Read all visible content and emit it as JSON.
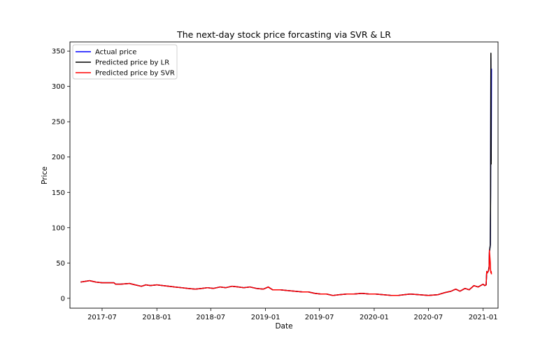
{
  "chart_data": {
    "type": "line",
    "title": "The next-day stock price forcasting via SVR & LR",
    "xlabel": "Date",
    "ylabel": "Price",
    "x_is_date": true,
    "xlim": [
      "2017-03-15",
      "2021-02-20"
    ],
    "ylim": [
      -14,
      363
    ],
    "x_ticks": [
      {
        "date": "2017-07-01",
        "label": "2017-07"
      },
      {
        "date": "2018-01-01",
        "label": "2018-01"
      },
      {
        "date": "2018-07-01",
        "label": "2018-07"
      },
      {
        "date": "2019-01-01",
        "label": "2019-01"
      },
      {
        "date": "2019-07-01",
        "label": "2019-07"
      },
      {
        "date": "2020-01-01",
        "label": "2020-01"
      },
      {
        "date": "2020-07-01",
        "label": "2020-07"
      },
      {
        "date": "2021-01-01",
        "label": "2021-01"
      }
    ],
    "y_ticks": [
      0,
      50,
      100,
      150,
      200,
      250,
      300,
      350
    ],
    "grid": false,
    "legend_position": "top-left",
    "series": [
      {
        "name": "Actual price",
        "color": "#0000ff",
        "x": [
          "2017-04-20",
          "2017-05-05",
          "2017-05-20",
          "2017-06-10",
          "2017-07-01",
          "2017-07-20",
          "2017-08-10",
          "2017-08-15",
          "2017-09-01",
          "2017-10-01",
          "2017-10-20",
          "2017-11-10",
          "2017-11-25",
          "2017-12-10",
          "2018-01-01",
          "2018-01-20",
          "2018-02-10",
          "2018-03-01",
          "2018-03-25",
          "2018-04-15",
          "2018-05-10",
          "2018-06-01",
          "2018-06-20",
          "2018-07-10",
          "2018-08-01",
          "2018-08-20",
          "2018-09-10",
          "2018-10-01",
          "2018-10-20",
          "2018-11-10",
          "2018-12-01",
          "2018-12-25",
          "2019-01-10",
          "2019-01-25",
          "2019-02-20",
          "2019-03-15",
          "2019-04-10",
          "2019-05-05",
          "2019-05-25",
          "2019-06-15",
          "2019-07-05",
          "2019-07-25",
          "2019-08-15",
          "2019-09-05",
          "2019-10-01",
          "2019-10-25",
          "2019-11-20",
          "2019-12-15",
          "2020-01-05",
          "2020-02-01",
          "2020-03-01",
          "2020-03-20",
          "2020-04-10",
          "2020-05-01",
          "2020-06-01",
          "2020-07-01",
          "2020-08-01",
          "2020-08-25",
          "2020-09-15",
          "2020-10-01",
          "2020-10-15",
          "2020-11-01",
          "2020-11-15",
          "2020-12-01",
          "2020-12-15",
          "2021-01-01",
          "2021-01-06",
          "2021-01-11",
          "2021-01-13",
          "2021-01-15",
          "2021-01-19",
          "2021-01-21",
          "2021-01-22",
          "2021-01-25",
          "2021-01-26",
          "2021-01-27",
          "2021-01-28",
          "2021-01-29"
        ],
        "y": [
          23,
          24,
          25,
          23,
          22,
          22,
          22,
          20,
          20,
          21,
          19,
          17,
          19,
          18,
          19,
          18,
          17,
          16,
          15,
          14,
          13,
          14,
          15,
          14,
          16,
          15,
          17,
          16,
          15,
          16,
          14,
          13,
          16,
          12,
          12,
          11,
          10,
          9,
          9,
          7,
          6,
          6,
          4,
          5,
          6,
          6,
          7,
          6,
          6,
          5,
          4,
          4,
          5,
          6,
          5,
          4,
          5,
          8,
          10,
          13,
          10,
          14,
          12,
          18,
          16,
          20,
          18,
          19,
          38,
          36,
          39,
          45,
          66,
          75,
          150,
          340,
          195,
          325
        ]
      },
      {
        "name": "Predicted price by LR",
        "color": "#000000",
        "x": [
          "2017-04-20",
          "2017-05-05",
          "2017-05-20",
          "2017-06-10",
          "2017-07-01",
          "2017-07-20",
          "2017-08-10",
          "2017-08-15",
          "2017-09-01",
          "2017-10-01",
          "2017-10-20",
          "2017-11-10",
          "2017-11-25",
          "2017-12-10",
          "2018-01-01",
          "2018-01-20",
          "2018-02-10",
          "2018-03-01",
          "2018-03-25",
          "2018-04-15",
          "2018-05-10",
          "2018-06-01",
          "2018-06-20",
          "2018-07-10",
          "2018-08-01",
          "2018-08-20",
          "2018-09-10",
          "2018-10-01",
          "2018-10-20",
          "2018-11-10",
          "2018-12-01",
          "2018-12-25",
          "2019-01-10",
          "2019-01-25",
          "2019-02-20",
          "2019-03-15",
          "2019-04-10",
          "2019-05-05",
          "2019-05-25",
          "2019-06-15",
          "2019-07-05",
          "2019-07-25",
          "2019-08-15",
          "2019-09-05",
          "2019-10-01",
          "2019-10-25",
          "2019-11-20",
          "2019-12-15",
          "2020-01-05",
          "2020-02-01",
          "2020-03-01",
          "2020-03-20",
          "2020-04-10",
          "2020-05-01",
          "2020-06-01",
          "2020-07-01",
          "2020-08-01",
          "2020-08-25",
          "2020-09-15",
          "2020-10-01",
          "2020-10-15",
          "2020-11-01",
          "2020-11-15",
          "2020-12-01",
          "2020-12-15",
          "2021-01-01",
          "2021-01-06",
          "2021-01-11",
          "2021-01-13",
          "2021-01-15",
          "2021-01-19",
          "2021-01-21",
          "2021-01-22",
          "2021-01-25",
          "2021-01-26",
          "2021-01-27",
          "2021-01-28",
          "2021-01-29"
        ],
        "y": [
          23,
          24,
          25,
          23,
          22,
          22,
          22,
          20,
          20,
          21,
          19,
          17,
          19,
          18,
          19,
          18,
          17,
          16,
          15,
          14,
          13,
          14,
          15,
          14,
          16,
          15,
          17,
          16,
          15,
          16,
          14,
          13,
          16,
          12,
          12,
          11,
          10,
          9,
          9,
          7,
          6,
          6,
          4,
          5,
          6,
          6,
          7,
          6,
          6,
          5,
          4,
          4,
          5,
          6,
          5,
          4,
          5,
          8,
          10,
          13,
          10,
          14,
          12,
          18,
          16,
          20,
          18,
          19,
          38,
          36,
          39,
          45,
          65,
          76,
          145,
          347,
          190,
          190
        ]
      },
      {
        "name": "Predicted price by SVR",
        "color": "#ff0000",
        "x": [
          "2017-04-20",
          "2017-05-05",
          "2017-05-20",
          "2017-06-10",
          "2017-07-01",
          "2017-07-20",
          "2017-08-10",
          "2017-08-15",
          "2017-09-01",
          "2017-10-01",
          "2017-10-20",
          "2017-11-10",
          "2017-11-25",
          "2017-12-10",
          "2018-01-01",
          "2018-01-20",
          "2018-02-10",
          "2018-03-01",
          "2018-03-25",
          "2018-04-15",
          "2018-05-10",
          "2018-06-01",
          "2018-06-20",
          "2018-07-10",
          "2018-08-01",
          "2018-08-20",
          "2018-09-10",
          "2018-10-01",
          "2018-10-20",
          "2018-11-10",
          "2018-12-01",
          "2018-12-25",
          "2019-01-10",
          "2019-01-25",
          "2019-02-20",
          "2019-03-15",
          "2019-04-10",
          "2019-05-05",
          "2019-05-25",
          "2019-06-15",
          "2019-07-05",
          "2019-07-25",
          "2019-08-15",
          "2019-09-05",
          "2019-10-01",
          "2019-10-25",
          "2019-11-20",
          "2019-12-15",
          "2020-01-05",
          "2020-02-01",
          "2020-03-01",
          "2020-03-20",
          "2020-04-10",
          "2020-05-01",
          "2020-06-01",
          "2020-07-01",
          "2020-08-01",
          "2020-08-25",
          "2020-09-15",
          "2020-10-01",
          "2020-10-15",
          "2020-11-01",
          "2020-11-15",
          "2020-12-01",
          "2020-12-15",
          "2021-01-01",
          "2021-01-06",
          "2021-01-11",
          "2021-01-13",
          "2021-01-15",
          "2021-01-19",
          "2021-01-21",
          "2021-01-22",
          "2021-01-25",
          "2021-01-26",
          "2021-01-27",
          "2021-01-28",
          "2021-01-29"
        ],
        "y": [
          23,
          24,
          25,
          23,
          22,
          22,
          22,
          20,
          20,
          21,
          19,
          17,
          19,
          18,
          19,
          18,
          17,
          16,
          15,
          14,
          13,
          14,
          15,
          14,
          16,
          15,
          17,
          16,
          15,
          16,
          14,
          13,
          16,
          12,
          12,
          11,
          10,
          9,
          9,
          7,
          6,
          6,
          4,
          5,
          6,
          6,
          7,
          6,
          6,
          5,
          4,
          4,
          5,
          6,
          5,
          4,
          5,
          8,
          10,
          13,
          10,
          14,
          12,
          18,
          16,
          20,
          18,
          19,
          38,
          36,
          39,
          42,
          68,
          50,
          40,
          36,
          38,
          34
        ]
      }
    ]
  }
}
